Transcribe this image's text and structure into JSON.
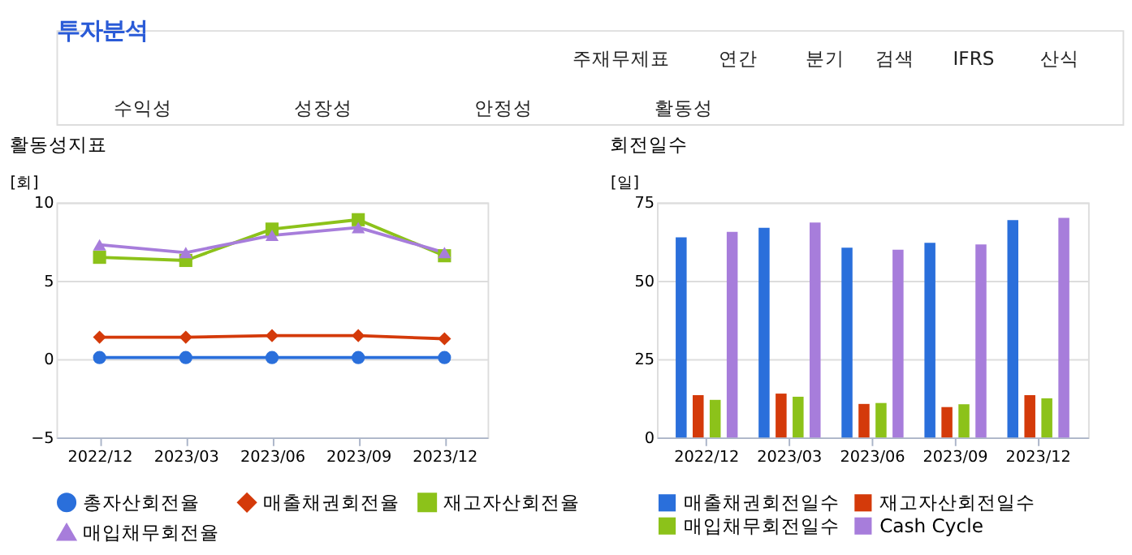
{
  "chart_data": [
    {
      "type": "other",
      "title": "투자분석",
      "annotations": [
        "주재무제표",
        "연간",
        "분기",
        "검색",
        "IFRS",
        "산식",
        "수익성",
        "성장성",
        "안정성",
        "활동성"
      ]
    },
    {
      "type": "line",
      "title": "활동성지표",
      "ylabel": "[회]",
      "categories": [
        "2022/12",
        "2023/03",
        "2023/06",
        "2023/09",
        "2023/12"
      ],
      "ylim": [
        -5,
        10
      ],
      "yticks": [
        -5,
        0,
        5,
        10
      ],
      "grid": "y",
      "legend": "bottom",
      "line_style": "solid",
      "series": [
        {
          "name": "총자산회전율",
          "color": "#2a6fdb",
          "marker": "circle",
          "values": [
            0.1,
            0.1,
            0.1,
            0.1,
            0.1
          ]
        },
        {
          "name": "매출채권회전율",
          "color": "#d43a0a",
          "marker": "diamond",
          "values": [
            1.4,
            1.4,
            1.5,
            1.5,
            1.3
          ]
        },
        {
          "name": "재고자산회전율",
          "color": "#8cc21a",
          "marker": "square",
          "values": [
            6.5,
            6.3,
            8.3,
            8.9,
            6.6
          ]
        },
        {
          "name": "매입채무회전율",
          "color": "#a77ddb",
          "marker": "triangle",
          "values": [
            7.3,
            6.8,
            7.9,
            8.4,
            6.8
          ]
        }
      ]
    },
    {
      "type": "bar",
      "title": "회전일수",
      "ylabel": "[일]",
      "categories": [
        "2022/12",
        "2023/03",
        "2023/06",
        "2023/09",
        "2023/12"
      ],
      "ylim": [
        0,
        75
      ],
      "yticks": [
        0,
        25,
        50,
        75
      ],
      "grid": "y",
      "legend": "bottom",
      "series": [
        {
          "name": "매출채권회전일수",
          "color": "#2a6fdb",
          "values": [
            63.9,
            66.9,
            60.6,
            62.1,
            69.4
          ]
        },
        {
          "name": "재고자산회전일수",
          "color": "#d43a0a",
          "values": [
            13.5,
            14,
            10.7,
            9.7,
            13.5
          ]
        },
        {
          "name": "매입채무회전일수",
          "color": "#8cc21a",
          "values": [
            12,
            13,
            11,
            10.6,
            12.5
          ]
        },
        {
          "name": "Cash Cycle",
          "color": "#a77ddb",
          "values": [
            65.6,
            68.6,
            59.9,
            61.6,
            70.1
          ]
        }
      ]
    }
  ]
}
